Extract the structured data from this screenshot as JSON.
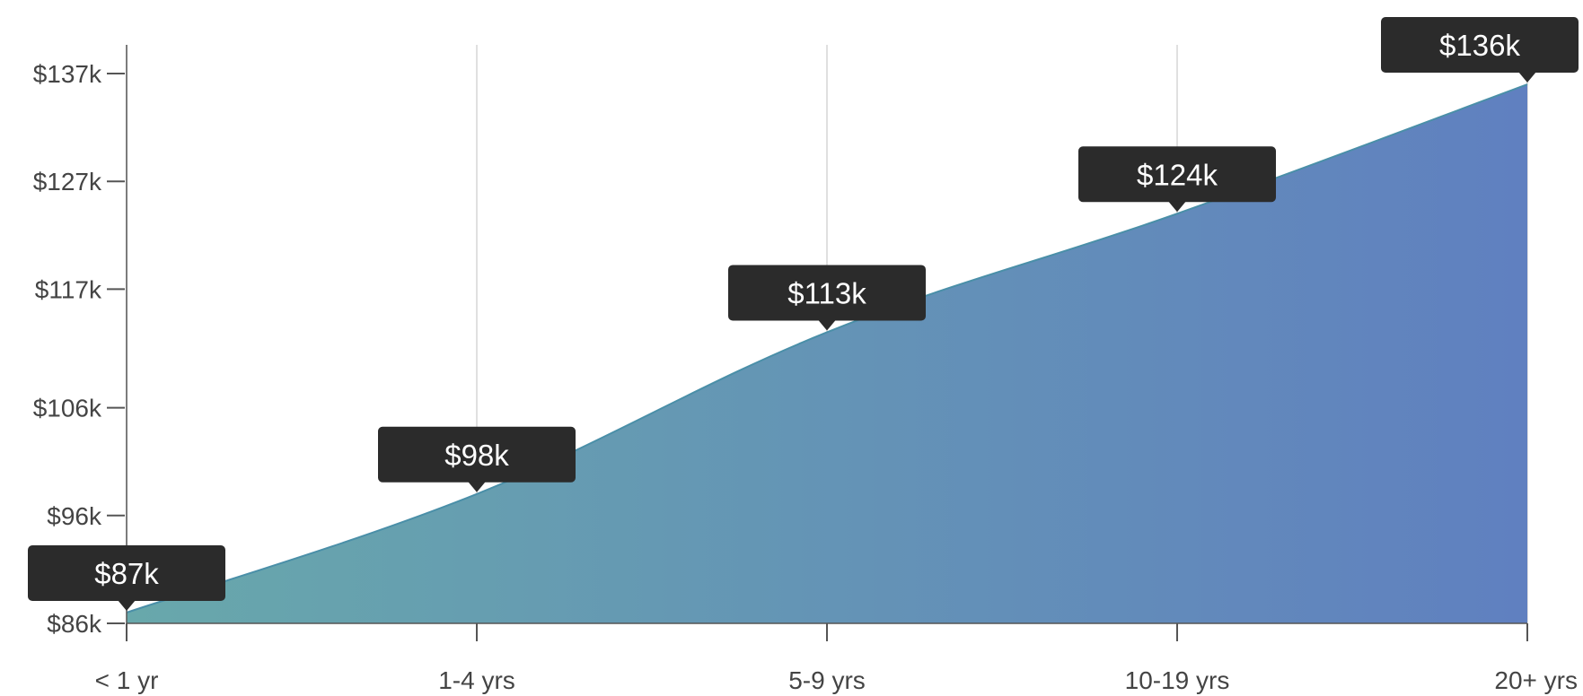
{
  "chart_data": {
    "type": "area",
    "title": "",
    "xlabel": "",
    "ylabel": "",
    "categories": [
      "< 1 yr",
      "1-4 yrs",
      "5-9 yrs",
      "10-19 yrs",
      "20+ yrs"
    ],
    "values": [
      87,
      98,
      113,
      124,
      136
    ],
    "data_labels": [
      "$87k",
      "$98k",
      "$113k",
      "$124k",
      "$136k"
    ],
    "y_ticks": [
      {
        "value": 86,
        "label": "$86k"
      },
      {
        "value": 96,
        "label": "$96k"
      },
      {
        "value": 106,
        "label": "$106k"
      },
      {
        "value": 117,
        "label": "$117k"
      },
      {
        "value": 127,
        "label": "$127k"
      },
      {
        "value": 137,
        "label": "$137k"
      }
    ],
    "ylim": [
      86,
      137
    ],
    "grid": "vertical",
    "legend": "none",
    "colors": {
      "fill_start": "#68a8ab",
      "fill_end": "#6080c0",
      "line": "#4a8fa8",
      "badge": "#2b2b2b",
      "grid": "#cccccc",
      "axis": "#555555"
    }
  }
}
